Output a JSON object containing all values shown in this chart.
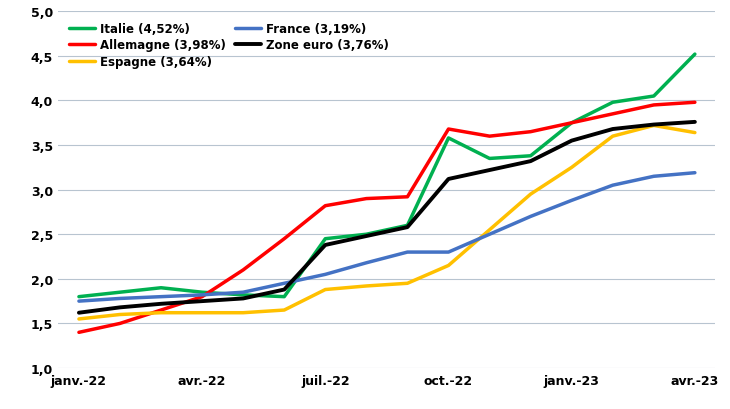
{
  "x_labels": [
    "janv.-22",
    "avr.-22",
    "juil.-22",
    "oct.-22",
    "janv.-23",
    "avr.-23"
  ],
  "x_ticks_pos": [
    0,
    3,
    6,
    9,
    12,
    15
  ],
  "series": {
    "Italie (4,52%)": {
      "color": "#00b050",
      "linewidth": 2.5,
      "values": [
        1.8,
        1.85,
        1.9,
        1.85,
        1.82,
        1.8,
        2.45,
        2.5,
        2.6,
        3.58,
        3.35,
        3.38,
        3.75,
        3.98,
        4.05,
        4.52
      ]
    },
    "Allemagne (3,98%)": {
      "color": "#ff0000",
      "linewidth": 2.5,
      "values": [
        1.4,
        1.5,
        1.65,
        1.8,
        2.1,
        2.45,
        2.82,
        2.9,
        2.92,
        3.68,
        3.6,
        3.65,
        3.75,
        3.85,
        3.95,
        3.98
      ]
    },
    "Espagne (3,64%)": {
      "color": "#ffc000",
      "linewidth": 2.5,
      "values": [
        1.55,
        1.6,
        1.62,
        1.62,
        1.62,
        1.65,
        1.88,
        1.92,
        1.95,
        2.15,
        2.55,
        2.95,
        3.25,
        3.6,
        3.72,
        3.64
      ]
    },
    "France (3,19%)": {
      "color": "#4472c4",
      "linewidth": 2.5,
      "values": [
        1.75,
        1.78,
        1.8,
        1.82,
        1.85,
        1.95,
        2.05,
        2.18,
        2.3,
        2.3,
        2.5,
        2.7,
        2.88,
        3.05,
        3.15,
        3.19
      ]
    },
    "Zone euro (3,76%)": {
      "color": "#000000",
      "linewidth": 2.8,
      "values": [
        1.62,
        1.68,
        1.72,
        1.75,
        1.78,
        1.88,
        2.38,
        2.48,
        2.58,
        3.12,
        3.22,
        3.32,
        3.55,
        3.68,
        3.73,
        3.76
      ]
    }
  },
  "ylim": [
    1.0,
    5.0
  ],
  "yticks": [
    1.0,
    1.5,
    2.0,
    2.5,
    3.0,
    3.5,
    4.0,
    4.5,
    5.0
  ],
  "ytick_labels": [
    "1,0",
    "1,5",
    "2,0",
    "2,5",
    "3,0",
    "3,5",
    "4,0",
    "4,5",
    "5,0"
  ],
  "background_color": "#ffffff",
  "grid_color": "#b8c4d0",
  "font_color": "#000000",
  "legend_order": [
    "Italie (4,52%)",
    "Allemagne (3,98%)",
    "Espagne (3,64%)",
    "France (3,19%)",
    "Zone euro (3,76%)"
  ]
}
